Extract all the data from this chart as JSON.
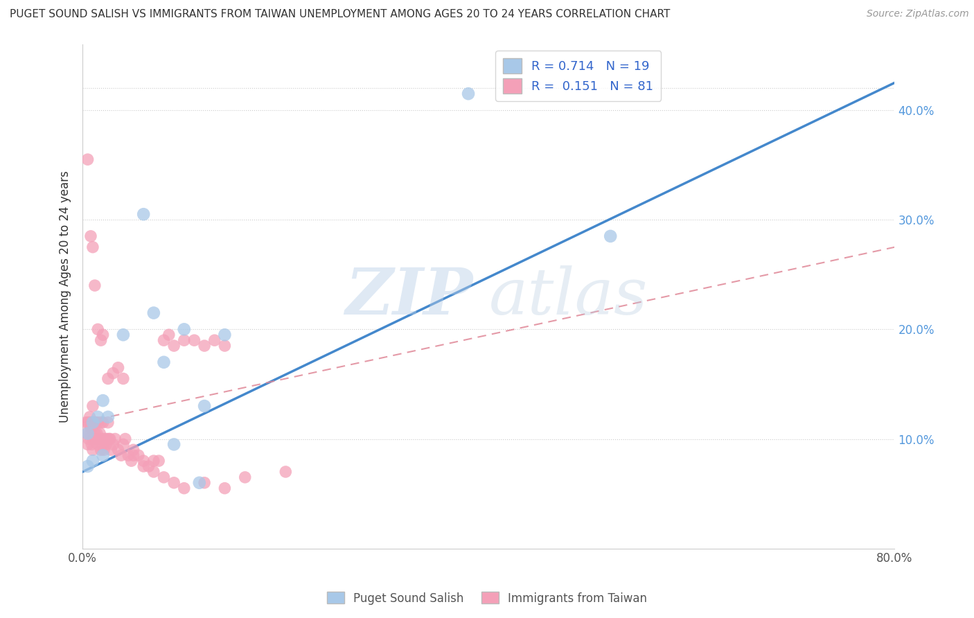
{
  "title": "PUGET SOUND SALISH VS IMMIGRANTS FROM TAIWAN UNEMPLOYMENT AMONG AGES 20 TO 24 YEARS CORRELATION CHART",
  "source": "Source: ZipAtlas.com",
  "ylabel": "Unemployment Among Ages 20 to 24 years",
  "xlim": [
    0.0,
    0.8
  ],
  "ylim": [
    0.0,
    0.46
  ],
  "xtick_positions": [
    0.0,
    0.1,
    0.2,
    0.3,
    0.4,
    0.5,
    0.6,
    0.7,
    0.8
  ],
  "xticklabels": [
    "0.0%",
    "",
    "",
    "",
    "",
    "",
    "",
    "",
    "80.0%"
  ],
  "ytick_positions": [
    0.1,
    0.2,
    0.3,
    0.4
  ],
  "ytick_labels": [
    "10.0%",
    "20.0%",
    "30.0%",
    "40.0%"
  ],
  "blue_R": 0.714,
  "blue_N": 19,
  "pink_R": 0.151,
  "pink_N": 81,
  "blue_color": "#a8c8e8",
  "pink_color": "#f4a0b8",
  "blue_line_color": "#4488cc",
  "pink_line_color": "#e08898",
  "legend_label_blue": "Puget Sound Salish",
  "legend_label_pink": "Immigrants from Taiwan",
  "blue_line_x0": 0.0,
  "blue_line_y0": 0.07,
  "blue_line_x1": 0.8,
  "blue_line_y1": 0.425,
  "pink_line_x0": 0.0,
  "pink_line_y0": 0.115,
  "pink_line_x1": 0.8,
  "pink_line_y1": 0.275,
  "blue_scatter_x": [
    0.005,
    0.01,
    0.015,
    0.02,
    0.025,
    0.04,
    0.07,
    0.08,
    0.1,
    0.115,
    0.12,
    0.14,
    0.38,
    0.52,
    0.005,
    0.01,
    0.02,
    0.06,
    0.09
  ],
  "blue_scatter_y": [
    0.105,
    0.115,
    0.12,
    0.135,
    0.12,
    0.195,
    0.215,
    0.17,
    0.2,
    0.06,
    0.13,
    0.195,
    0.415,
    0.285,
    0.075,
    0.08,
    0.085,
    0.305,
    0.095
  ],
  "pink_scatter_x": [
    0.003,
    0.004,
    0.005,
    0.005,
    0.006,
    0.006,
    0.007,
    0.007,
    0.008,
    0.008,
    0.009,
    0.009,
    0.01,
    0.01,
    0.01,
    0.011,
    0.012,
    0.012,
    0.013,
    0.013,
    0.014,
    0.015,
    0.015,
    0.016,
    0.017,
    0.018,
    0.018,
    0.019,
    0.02,
    0.02,
    0.021,
    0.022,
    0.023,
    0.024,
    0.025,
    0.026,
    0.027,
    0.028,
    0.03,
    0.032,
    0.035,
    0.038,
    0.04,
    0.042,
    0.045,
    0.048,
    0.05,
    0.055,
    0.06,
    0.065,
    0.07,
    0.075,
    0.08,
    0.085,
    0.09,
    0.1,
    0.11,
    0.12,
    0.13,
    0.14,
    0.005,
    0.008,
    0.01,
    0.012,
    0.015,
    0.018,
    0.02,
    0.025,
    0.03,
    0.035,
    0.04,
    0.05,
    0.06,
    0.07,
    0.08,
    0.09,
    0.1,
    0.12,
    0.14,
    0.16,
    0.2
  ],
  "pink_scatter_y": [
    0.115,
    0.105,
    0.095,
    0.115,
    0.1,
    0.115,
    0.105,
    0.12,
    0.11,
    0.115,
    0.095,
    0.11,
    0.09,
    0.115,
    0.13,
    0.1,
    0.105,
    0.115,
    0.1,
    0.115,
    0.105,
    0.095,
    0.115,
    0.1,
    0.105,
    0.09,
    0.115,
    0.1,
    0.095,
    0.115,
    0.09,
    0.1,
    0.095,
    0.1,
    0.115,
    0.1,
    0.1,
    0.09,
    0.095,
    0.1,
    0.09,
    0.085,
    0.095,
    0.1,
    0.085,
    0.08,
    0.09,
    0.085,
    0.08,
    0.075,
    0.08,
    0.08,
    0.19,
    0.195,
    0.185,
    0.19,
    0.19,
    0.185,
    0.19,
    0.185,
    0.355,
    0.285,
    0.275,
    0.24,
    0.2,
    0.19,
    0.195,
    0.155,
    0.16,
    0.165,
    0.155,
    0.085,
    0.075,
    0.07,
    0.065,
    0.06,
    0.055,
    0.06,
    0.055,
    0.065,
    0.07
  ]
}
